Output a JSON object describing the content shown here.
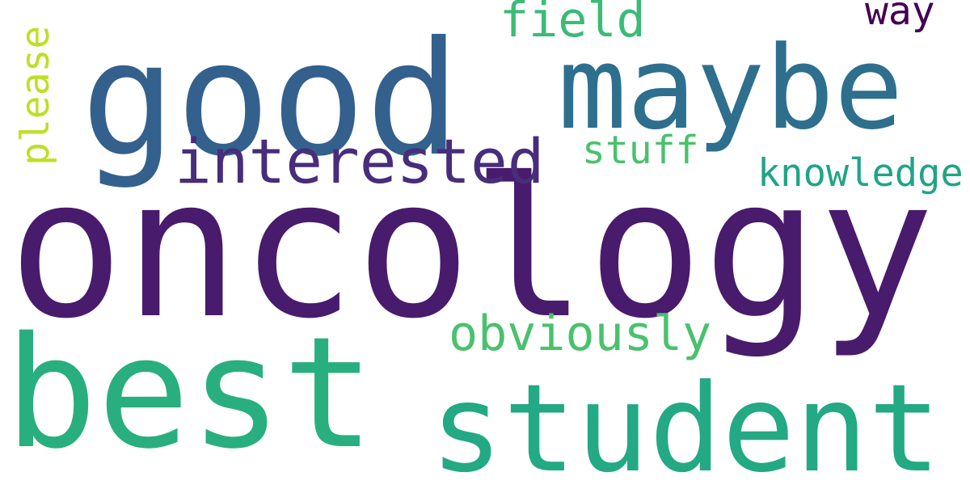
{
  "words": [
    {
      "text": "oncology",
      "color": "#481b6d"
    },
    {
      "text": "good",
      "color": "#34608d"
    },
    {
      "text": "best",
      "color": "#29af7f"
    },
    {
      "text": "maybe",
      "color": "#2e6f8e"
    },
    {
      "text": "student",
      "color": "#23a983"
    },
    {
      "text": "interested",
      "color": "#472d7b"
    },
    {
      "text": "obviously",
      "color": "#4ac16d"
    },
    {
      "text": "field",
      "color": "#3bbb75"
    },
    {
      "text": "stuff",
      "color": "#4ac16d"
    },
    {
      "text": "knowledge",
      "color": "#20a486"
    },
    {
      "text": "way",
      "color": "#440154"
    },
    {
      "text": "please",
      "color": "#bddf26"
    }
  ]
}
